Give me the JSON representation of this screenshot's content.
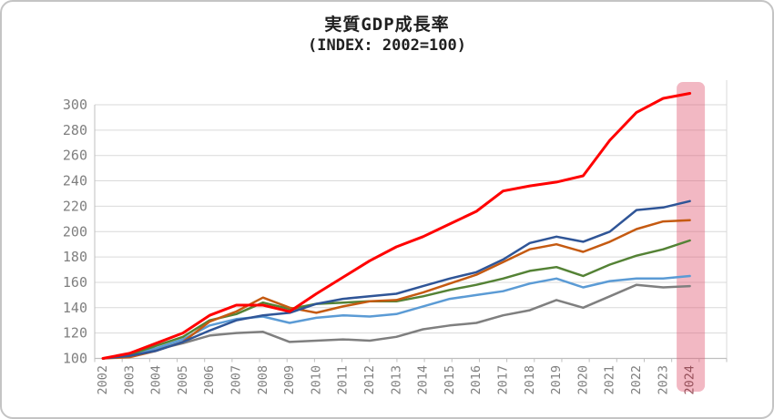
{
  "card": {
    "background": "#FFFFFF",
    "border_color": "#C4C4C4"
  },
  "chart_data": {
    "type": "line",
    "title": "実質GDP成長率",
    "subtitle": "(INDEX: 2002=100)",
    "legend": "none",
    "grid": true,
    "x_categories": [
      "2002",
      "2003",
      "2004",
      "2005",
      "2006",
      "2007",
      "2008",
      "2009",
      "2010",
      "2011",
      "2012",
      "2013",
      "2014",
      "2015",
      "2016",
      "2017",
      "2018",
      "2019",
      "2020",
      "2021",
      "2022",
      "2023",
      "2024"
    ],
    "y_ticks": [
      100,
      120,
      140,
      160,
      180,
      200,
      220,
      240,
      260,
      280,
      300
    ],
    "y_range": [
      100,
      310
    ],
    "axis_label_color": "#7F7F7F",
    "grid_color": "#D9D9D9",
    "axis_line_color": "#BFBFBF",
    "highlight": {
      "category": "2024",
      "band_fill": "rgba(224,85,112,0.42)",
      "label_color": "#96505A"
    },
    "series": [
      {
        "name": "gray-line",
        "color": "#7F7F7F",
        "width": 2.5,
        "values": [
          100,
          102,
          107,
          112,
          118,
          120,
          121,
          113,
          114,
          115,
          114,
          117,
          123,
          126,
          128,
          134,
          138,
          146,
          140,
          149,
          158,
          156,
          157
        ]
      },
      {
        "name": "light-blue-line",
        "color": "#5B9BD5",
        "width": 2.5,
        "values": [
          100,
          103,
          108,
          115,
          126,
          131,
          133,
          128,
          132,
          134,
          133,
          135,
          141,
          147,
          150,
          153,
          159,
          163,
          156,
          161,
          163,
          163,
          165
        ]
      },
      {
        "name": "green-line",
        "color": "#548235",
        "width": 2.5,
        "values": [
          100,
          103,
          110,
          117,
          130,
          135,
          144,
          139,
          143,
          144,
          145,
          145,
          149,
          154,
          158,
          163,
          169,
          172,
          165,
          174,
          181,
          186,
          193
        ]
      },
      {
        "name": "orange-line",
        "color": "#C55A11",
        "width": 2.5,
        "values": [
          100,
          101,
          106,
          113,
          129,
          137,
          148,
          140,
          136,
          141,
          145,
          146,
          152,
          159,
          166,
          176,
          186,
          190,
          184,
          192,
          202,
          208,
          209
        ]
      },
      {
        "name": "dark-blue-line",
        "color": "#2F5597",
        "width": 2.5,
        "values": [
          100,
          102,
          106,
          113,
          122,
          130,
          134,
          136,
          143,
          147,
          149,
          151,
          157,
          163,
          168,
          178,
          191,
          196,
          192,
          200,
          217,
          219,
          224
        ]
      },
      {
        "name": "red-line",
        "color": "#FF0000",
        "width": 3,
        "values": [
          100,
          104,
          112,
          120,
          134,
          142,
          142,
          137,
          151,
          164,
          177,
          188,
          196,
          206,
          216,
          232,
          236,
          239,
          244,
          272,
          294,
          305,
          309
        ]
      }
    ]
  }
}
